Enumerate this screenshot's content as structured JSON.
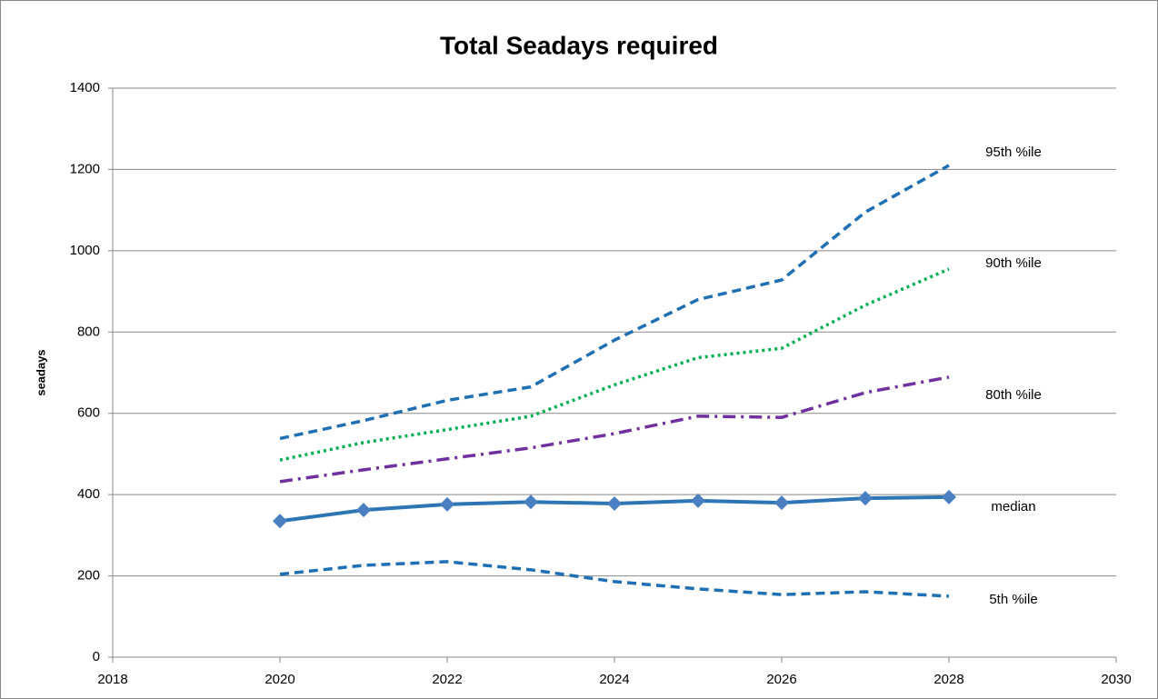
{
  "chart_data": {
    "type": "line",
    "title": "Total Seadays required",
    "y_label": "seadays",
    "x": [
      2020,
      2021,
      2022,
      2023,
      2024,
      2025,
      2026,
      2027,
      2028
    ],
    "xlim": [
      2018,
      2030
    ],
    "xticks": [
      2018,
      2020,
      2022,
      2024,
      2026,
      2028,
      2030
    ],
    "ylim": [
      0,
      1400
    ],
    "yticks": [
      0,
      200,
      400,
      600,
      800,
      1000,
      1200,
      1400
    ],
    "grid": true,
    "series": [
      {
        "name": "95th %ile",
        "color": "#1f6fb5",
        "dash": "dashed",
        "values": [
          538,
          582,
          632,
          665,
          780,
          880,
          928,
          1095,
          1210
        ]
      },
      {
        "name": "90th %ile",
        "color": "#00b050",
        "dash": "dotted",
        "values": [
          485,
          528,
          560,
          593,
          670,
          737,
          760,
          866,
          955
        ]
      },
      {
        "name": "80th %ile",
        "color": "#7030a0",
        "dash": "dashdot",
        "values": [
          432,
          461,
          488,
          515,
          550,
          593,
          590,
          651,
          689
        ]
      },
      {
        "name": "median",
        "color": "#2e75b6",
        "dash": "solid",
        "marker": "diamond",
        "values": [
          335,
          362,
          376,
          382,
          378,
          385,
          380,
          391,
          394
        ]
      },
      {
        "name": "5th %ile",
        "color": "#1f6fb5",
        "dash": "dashed",
        "values": [
          204,
          226,
          235,
          215,
          186,
          168,
          154,
          161,
          150
        ]
      }
    ]
  }
}
